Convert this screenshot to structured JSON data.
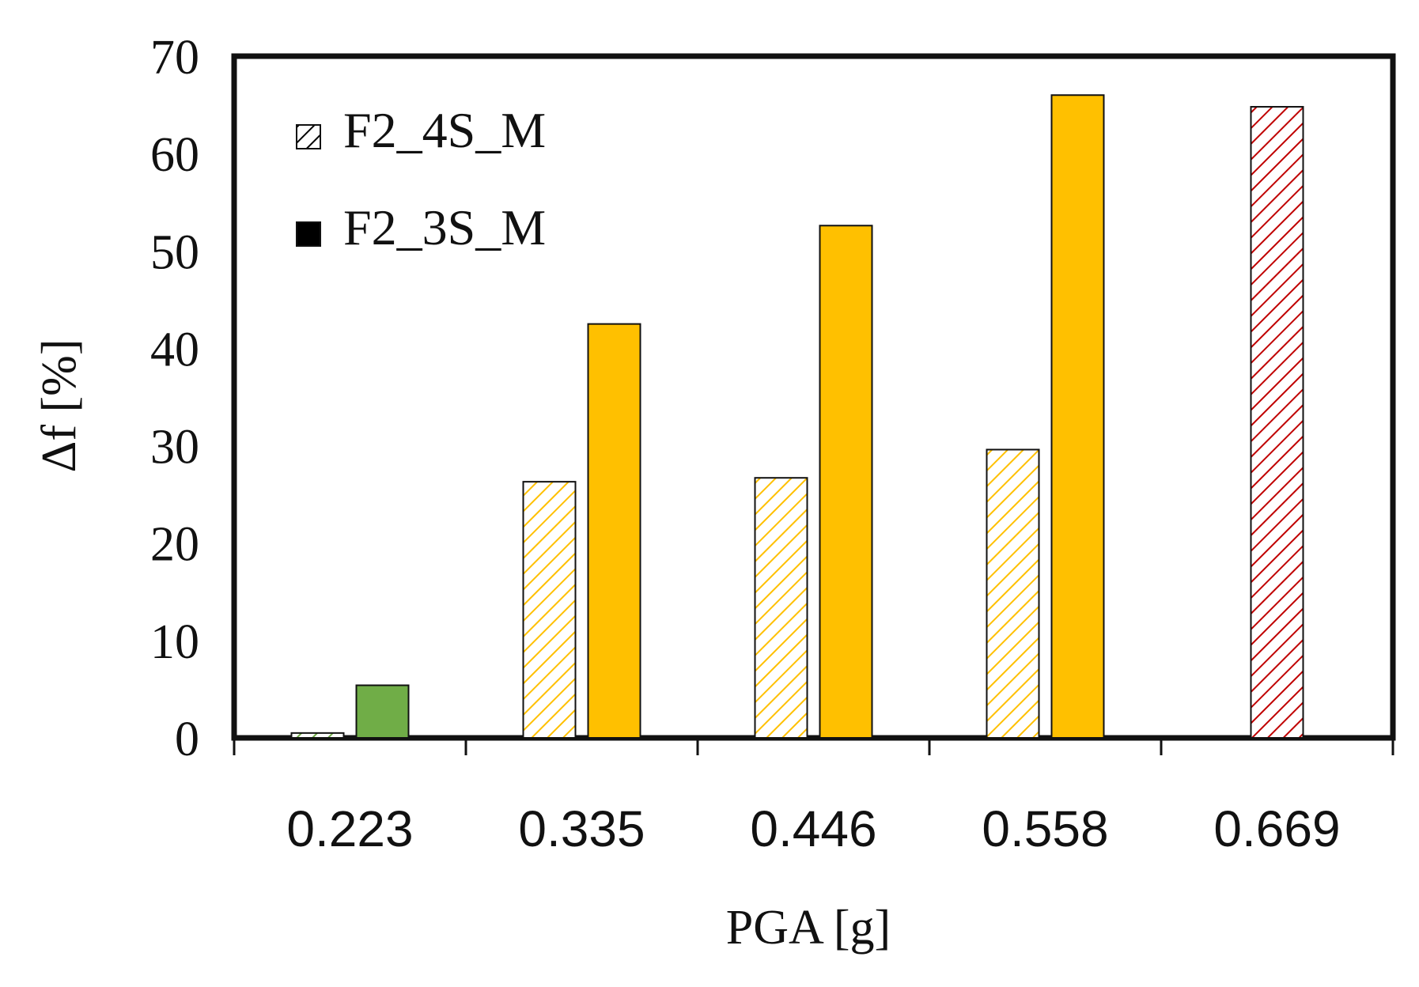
{
  "chart_data": {
    "type": "bar",
    "xlabel": "PGA [g]",
    "ylabel": "Δf [%]",
    "categories": [
      "0.223",
      "0.335",
      "0.446",
      "0.558",
      "0.669"
    ],
    "ylim": [
      0,
      70
    ],
    "yticks": [
      "0",
      "10",
      "20",
      "30",
      "40",
      "50",
      "60",
      "70"
    ],
    "grid": false,
    "legend_position": "top-left",
    "series": [
      {
        "name": "F2_4S_M",
        "pattern": "hatched",
        "values": [
          0.5,
          26.3,
          26.7,
          29.6,
          64.8
        ]
      },
      {
        "name": "F2_3S_M",
        "pattern": "solid",
        "values": [
          5.4,
          42.5,
          52.6,
          66.0,
          null
        ]
      }
    ],
    "bar_colors": [
      "#70ad47",
      "#ffc000",
      "#ffc000",
      "#ffc000",
      "#c00000"
    ],
    "legend_swatch_color": "#000000"
  }
}
